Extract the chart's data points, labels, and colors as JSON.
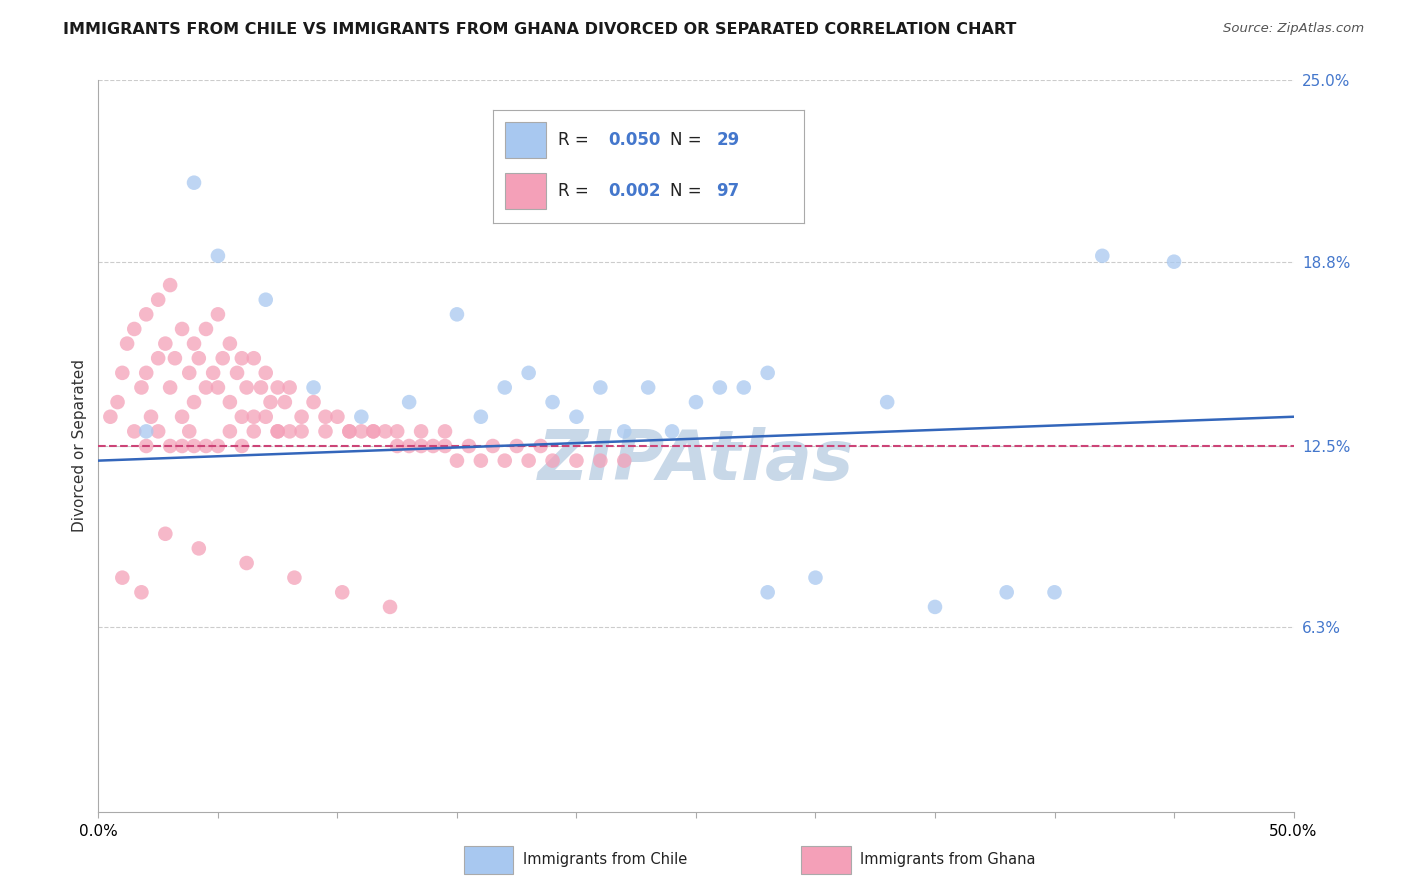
{
  "title": "IMMIGRANTS FROM CHILE VS IMMIGRANTS FROM GHANA DIVORCED OR SEPARATED CORRELATION CHART",
  "source": "Source: ZipAtlas.com",
  "ylabel": "Divorced or Separated",
  "chile_label": "Immigrants from Chile",
  "ghana_label": "Immigrants from Ghana",
  "chile_R": "0.050",
  "chile_N": "29",
  "ghana_R": "0.002",
  "ghana_N": "97",
  "xlim": [
    0.0,
    50.0
  ],
  "ylim": [
    0.0,
    25.0
  ],
  "y_ticks_right": [
    6.3,
    12.5,
    18.8,
    25.0
  ],
  "y_tick_labels_right": [
    "6.3%",
    "12.5%",
    "18.8%",
    "25.0%"
  ],
  "grid_color": "#cccccc",
  "chile_color": "#a8c8f0",
  "ghana_color": "#f4a0b8",
  "chile_line_color": "#3366bb",
  "ghana_line_color": "#cc4477",
  "watermark": "ZIPAtlas",
  "watermark_color": "#c8d8e8",
  "chile_x": [
    2.0,
    4.0,
    5.0,
    7.0,
    9.0,
    11.0,
    13.0,
    15.0,
    17.0,
    19.0,
    21.0,
    22.0,
    23.0,
    24.0,
    25.0,
    27.0,
    28.0,
    30.0,
    33.0,
    35.0,
    38.0,
    40.0,
    42.0,
    28.0,
    26.0,
    20.0,
    18.0,
    16.0,
    45.0
  ],
  "chile_y": [
    13.0,
    21.5,
    19.0,
    17.5,
    14.5,
    13.5,
    14.0,
    17.0,
    14.5,
    14.0,
    14.5,
    13.0,
    14.5,
    13.0,
    14.0,
    14.5,
    7.5,
    8.0,
    14.0,
    7.0,
    7.5,
    7.5,
    19.0,
    15.0,
    14.5,
    13.5,
    15.0,
    13.5,
    18.8
  ],
  "ghana_x": [
    0.5,
    0.8,
    1.0,
    1.2,
    1.5,
    1.5,
    1.8,
    2.0,
    2.0,
    2.2,
    2.5,
    2.5,
    2.8,
    3.0,
    3.0,
    3.2,
    3.5,
    3.5,
    3.8,
    4.0,
    4.0,
    4.2,
    4.5,
    4.5,
    4.8,
    5.0,
    5.0,
    5.2,
    5.5,
    5.5,
    5.8,
    6.0,
    6.0,
    6.2,
    6.5,
    6.5,
    6.8,
    7.0,
    7.0,
    7.2,
    7.5,
    7.5,
    7.8,
    8.0,
    8.0,
    8.5,
    9.0,
    9.5,
    10.0,
    10.5,
    11.0,
    11.5,
    12.0,
    12.5,
    13.0,
    13.5,
    14.0,
    14.5,
    15.0,
    16.0,
    17.0,
    18.0,
    19.0,
    20.0,
    21.0,
    22.0,
    3.0,
    4.0,
    5.0,
    6.0,
    2.0,
    3.5,
    4.5,
    2.5,
    3.8,
    5.5,
    6.5,
    7.5,
    8.5,
    9.5,
    10.5,
    11.5,
    12.5,
    13.5,
    14.5,
    15.5,
    16.5,
    17.5,
    18.5,
    1.0,
    1.8,
    2.8,
    4.2,
    6.2,
    8.2,
    10.2,
    12.2
  ],
  "ghana_y": [
    13.5,
    14.0,
    15.0,
    16.0,
    16.5,
    13.0,
    14.5,
    17.0,
    15.0,
    13.5,
    17.5,
    15.5,
    16.0,
    18.0,
    14.5,
    15.5,
    16.5,
    13.5,
    15.0,
    16.0,
    14.0,
    15.5,
    16.5,
    14.5,
    15.0,
    17.0,
    14.5,
    15.5,
    16.0,
    14.0,
    15.0,
    15.5,
    13.5,
    14.5,
    15.5,
    13.5,
    14.5,
    15.0,
    13.5,
    14.0,
    14.5,
    13.0,
    14.0,
    14.5,
    13.0,
    13.5,
    14.0,
    13.5,
    13.5,
    13.0,
    13.0,
    13.0,
    13.0,
    12.5,
    12.5,
    12.5,
    12.5,
    12.5,
    12.0,
    12.0,
    12.0,
    12.0,
    12.0,
    12.0,
    12.0,
    12.0,
    12.5,
    12.5,
    12.5,
    12.5,
    12.5,
    12.5,
    12.5,
    13.0,
    13.0,
    13.0,
    13.0,
    13.0,
    13.0,
    13.0,
    13.0,
    13.0,
    13.0,
    13.0,
    13.0,
    12.5,
    12.5,
    12.5,
    12.5,
    8.0,
    7.5,
    9.5,
    9.0,
    8.5,
    8.0,
    7.5,
    7.0
  ]
}
